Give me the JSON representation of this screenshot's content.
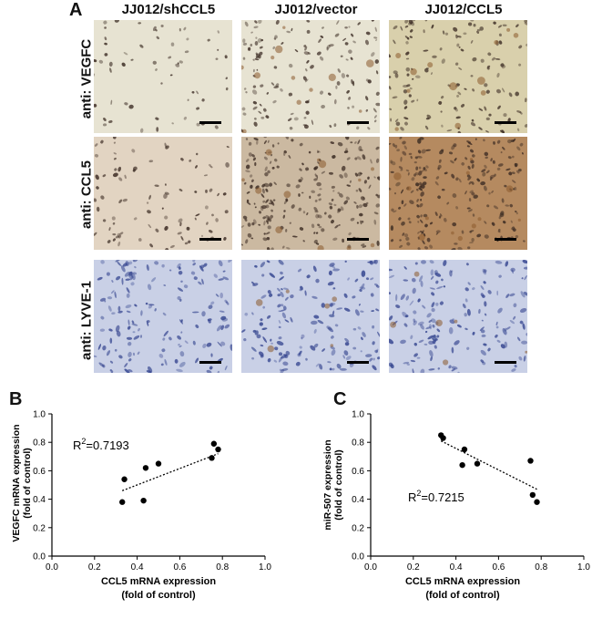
{
  "figure": {
    "panel_a": {
      "letter": "A",
      "columns": [
        "JJ012/shCCL5",
        "JJ012/vector",
        "JJ012/CCL5"
      ],
      "rows": [
        "anti: VEGFC",
        "anti: CCL5",
        "anti: LYVE-1"
      ]
    },
    "panel_b": {
      "letter": "B",
      "ylabel_line1": "VEGFC mRNA expression",
      "ylabel_line2": "(fold of control)",
      "xlabel_line1": "CCL5 mRNA expression",
      "xlabel_line2": "(fold of control)",
      "annotation_base": "R",
      "annotation_sup": "2",
      "annotation_value": "=0.7193"
    },
    "panel_c": {
      "letter": "C",
      "ylabel_line1": "miR-507 expression",
      "ylabel_line2": "(fold of control)",
      "xlabel_line1": "CCL5 mRNA expression",
      "xlabel_line2": "(fold of control)",
      "annotation_base": "R",
      "annotation_sup": "2",
      "annotation_value": "=0.7215"
    }
  },
  "colors": {
    "row_vegfc": "#e7e3d2",
    "row_ccl5": "#e2d4c2",
    "row_lyve1": "#c9d0e6",
    "nuclei_dark": "#3a2a22",
    "nuclei_blue": "#35458f",
    "brown_stain": "#8a5a2b"
  },
  "chart_data": [
    {
      "type": "scatter",
      "xlabel": "CCL5 mRNA expression (fold of control)",
      "ylabel": "VEGFC mRNA expression (fold of control)",
      "xlim": [
        0.0,
        1.0
      ],
      "ylim": [
        0.0,
        1.0
      ],
      "xticks": [
        "0.0",
        "0.2",
        "0.4",
        "0.6",
        "0.8",
        "1.0"
      ],
      "yticks": [
        "0.0",
        "0.2",
        "0.4",
        "0.6",
        "0.8",
        "1.0"
      ],
      "points": [
        {
          "x": 0.33,
          "y": 0.38
        },
        {
          "x": 0.34,
          "y": 0.54
        },
        {
          "x": 0.43,
          "y": 0.39
        },
        {
          "x": 0.44,
          "y": 0.62
        },
        {
          "x": 0.5,
          "y": 0.65
        },
        {
          "x": 0.75,
          "y": 0.69
        },
        {
          "x": 0.76,
          "y": 0.79
        },
        {
          "x": 0.78,
          "y": 0.75
        }
      ],
      "trendline": {
        "x": [
          0.33,
          0.78
        ],
        "y": [
          0.46,
          0.72
        ],
        "style": "dotted"
      },
      "annotation": "R2=0.7193",
      "grid": false
    },
    {
      "type": "scatter",
      "xlabel": "CCL5 mRNA expression (fold of control)",
      "ylabel": "miR-507 expression (fold of control)",
      "xlim": [
        0.0,
        1.0
      ],
      "ylim": [
        0.0,
        1.0
      ],
      "xticks": [
        "0.0",
        "0.2",
        "0.4",
        "0.6",
        "0.8",
        "1.0"
      ],
      "yticks": [
        "0.0",
        "0.2",
        "0.4",
        "0.6",
        "0.8",
        "1.0"
      ],
      "points": [
        {
          "x": 0.33,
          "y": 0.85
        },
        {
          "x": 0.34,
          "y": 0.83
        },
        {
          "x": 0.43,
          "y": 0.64
        },
        {
          "x": 0.44,
          "y": 0.75
        },
        {
          "x": 0.5,
          "y": 0.65
        },
        {
          "x": 0.75,
          "y": 0.67
        },
        {
          "x": 0.76,
          "y": 0.43
        },
        {
          "x": 0.78,
          "y": 0.38
        }
      ],
      "trendline": {
        "x": [
          0.33,
          0.78
        ],
        "y": [
          0.81,
          0.47
        ],
        "style": "dotted"
      },
      "annotation": "R2=0.7215",
      "grid": false
    }
  ]
}
